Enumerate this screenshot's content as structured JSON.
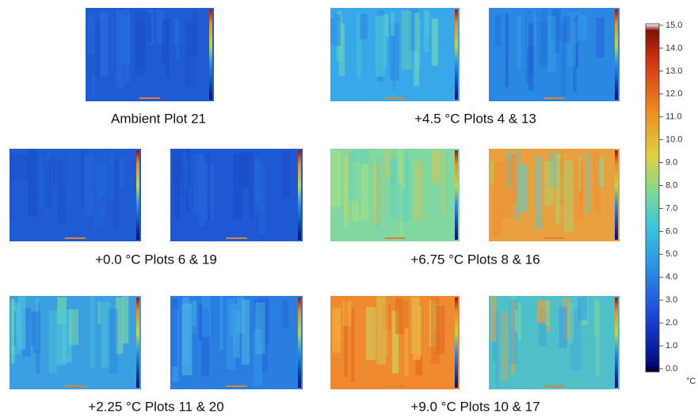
{
  "panels": [
    {
      "caption": "Ambient Plot 21"
    },
    {
      "caption": "+4.5 °C Plots 4 & 13"
    },
    {
      "caption": "+0.0 °C Plots 6 & 19"
    },
    {
      "caption": "+6.75 °C Plots 8 & 16"
    },
    {
      "caption": "+2.25 °C Plots 11 & 20"
    },
    {
      "caption": "+9.0 °C Plots 10 & 17"
    }
  ],
  "colorbar": {
    "unit": "°C",
    "lim": [
      0,
      15
    ],
    "ticks": [
      {
        "value": 0,
        "label": "0.0"
      },
      {
        "value": 1,
        "label": "1.0"
      },
      {
        "value": 2,
        "label": "2.0"
      },
      {
        "value": 3,
        "label": "3.0"
      },
      {
        "value": 4,
        "label": "4.0"
      },
      {
        "value": 5,
        "label": "5.0"
      },
      {
        "value": 6,
        "label": "6.0"
      },
      {
        "value": 7,
        "label": "7.0"
      },
      {
        "value": 8,
        "label": "8.0"
      },
      {
        "value": 9,
        "label": "9.0"
      },
      {
        "value": 10,
        "label": "10.0"
      },
      {
        "value": 11,
        "label": "11.0"
      },
      {
        "value": 12,
        "label": "12.0"
      },
      {
        "value": 13,
        "label": "13.0"
      },
      {
        "value": 14,
        "label": "14.0"
      },
      {
        "value": 15,
        "label": "15.0"
      }
    ]
  }
}
